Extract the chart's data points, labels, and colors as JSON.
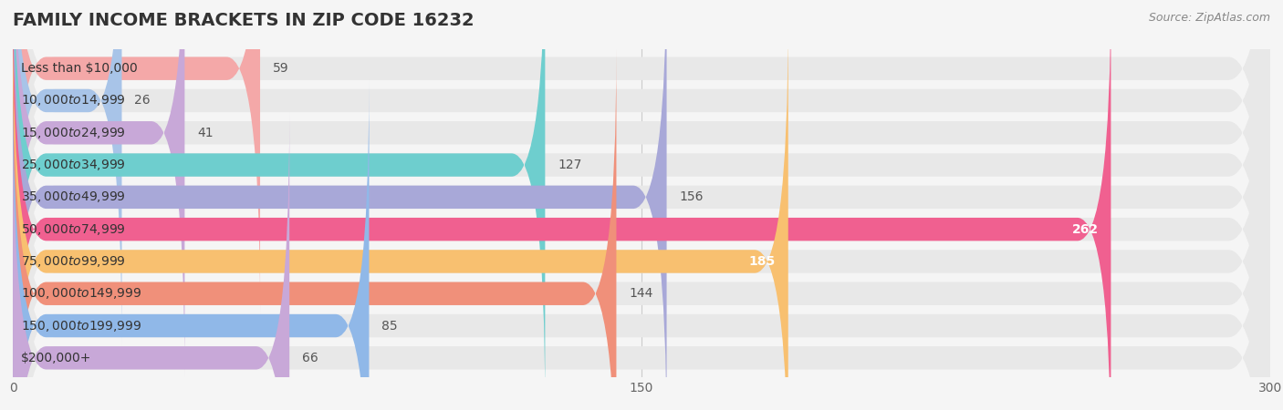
{
  "title": "FAMILY INCOME BRACKETS IN ZIP CODE 16232",
  "source_text": "Source: ZipAtlas.com",
  "categories": [
    "Less than $10,000",
    "$10,000 to $14,999",
    "$15,000 to $24,999",
    "$25,000 to $34,999",
    "$35,000 to $49,999",
    "$50,000 to $74,999",
    "$75,000 to $99,999",
    "$100,000 to $149,999",
    "$150,000 to $199,999",
    "$200,000+"
  ],
  "values": [
    59,
    26,
    41,
    127,
    156,
    262,
    185,
    144,
    85,
    66
  ],
  "bar_colors": [
    "#F4A8A8",
    "#A8C4E8",
    "#C8A8D8",
    "#6ECECE",
    "#A8A8D8",
    "#F06090",
    "#F8C070",
    "#F0907A",
    "#90B8E8",
    "#C8A8D8"
  ],
  "label_colors": [
    "#555555",
    "#555555",
    "#555555",
    "#555555",
    "#555555",
    "#ffffff",
    "#ffffff",
    "#555555",
    "#555555",
    "#555555"
  ],
  "background_color": "#f5f5f5",
  "bar_background_color": "#e8e8e8",
  "xlim": [
    0,
    300
  ],
  "xticks": [
    0,
    150,
    300
  ],
  "title_fontsize": 14,
  "label_fontsize": 10,
  "value_fontsize": 10,
  "source_fontsize": 9
}
